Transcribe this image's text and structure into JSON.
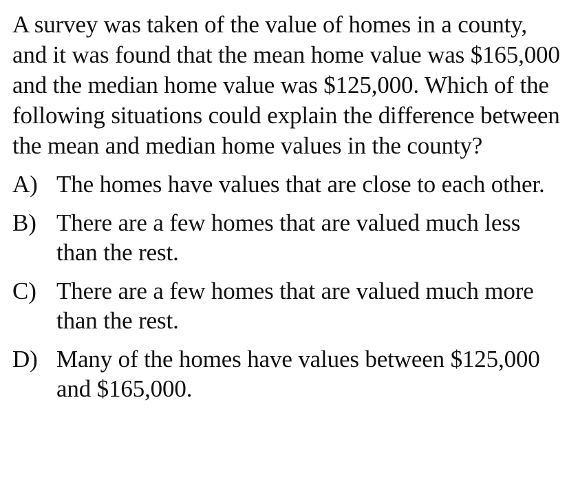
{
  "question": {
    "text": "A survey was taken of the value of homes in a county, and it was found that the mean home value was $165,000 and the median home value was $125,000. Which of the following situations could explain the difference between the mean and median home values in the county?"
  },
  "choices": [
    {
      "letter": "A)",
      "text": "The homes have values that are close to each other."
    },
    {
      "letter": "B)",
      "text": "There are a few homes that are valued much less than the rest."
    },
    {
      "letter": "C)",
      "text": "There are a few homes that are valued much more than the rest."
    },
    {
      "letter": "D)",
      "text": "Many of the homes have values between $125,000 and $165,000."
    }
  ]
}
